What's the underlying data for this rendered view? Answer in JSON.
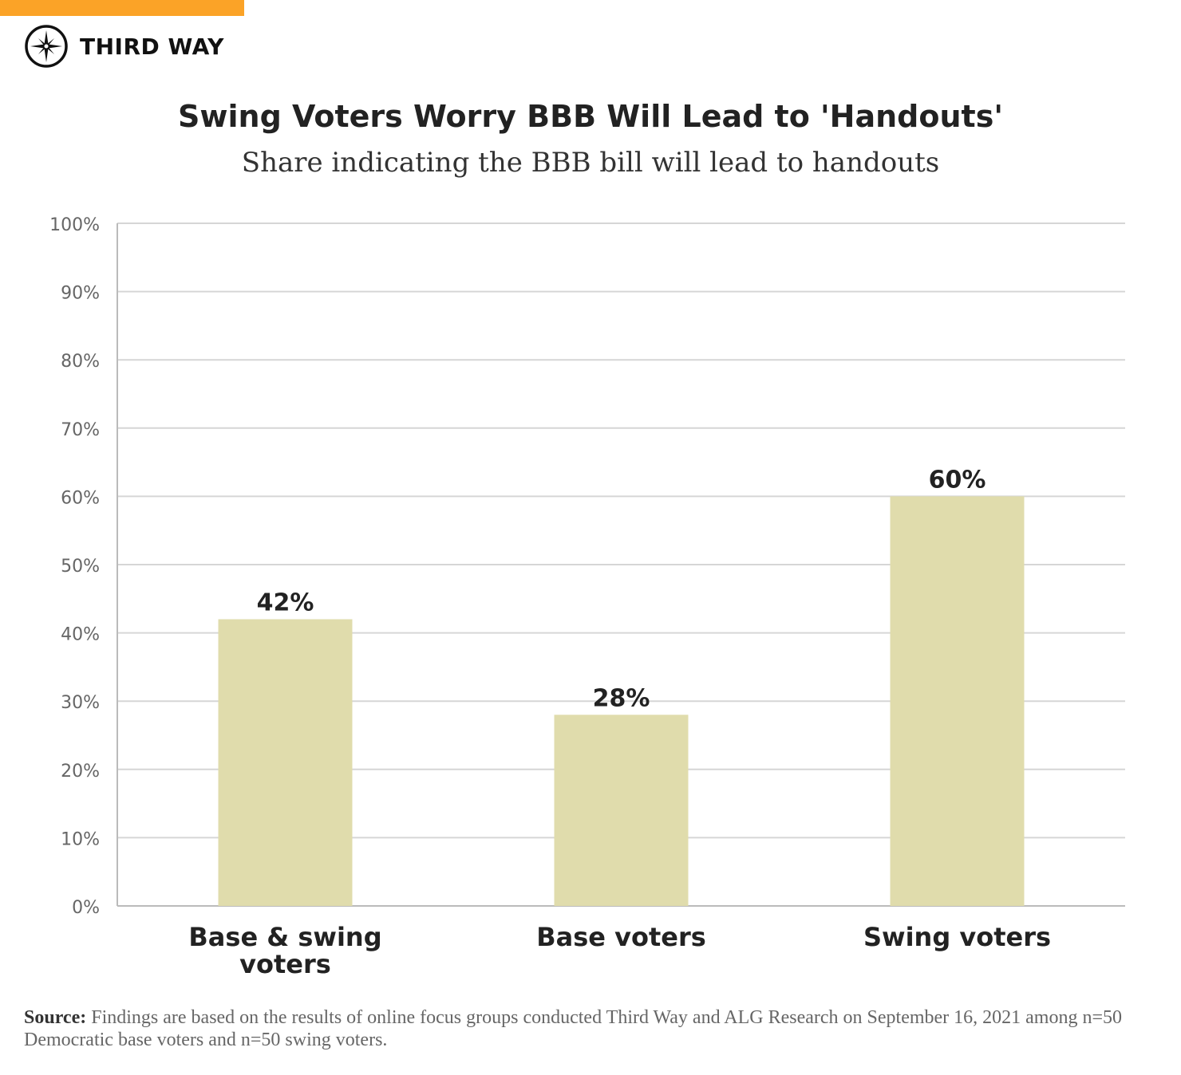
{
  "brand": {
    "name": "THIRD WAY",
    "accent": "#fba327"
  },
  "chart_data": {
    "type": "bar",
    "title": "Swing Voters Worry BBB Will Lead to 'Handouts'",
    "subtitle": "Share indicating the BBB bill will lead to handouts",
    "categories": [
      [
        "Base & swing",
        "voters"
      ],
      [
        "Base voters"
      ],
      [
        "Swing voters"
      ]
    ],
    "values": [
      42,
      28,
      60
    ],
    "data_labels": [
      "42%",
      "28%",
      "60%"
    ],
    "ylim": [
      0,
      100
    ],
    "yticks": [
      0,
      10,
      20,
      30,
      40,
      50,
      60,
      70,
      80,
      90,
      100
    ],
    "ytick_labels": [
      "0%",
      "10%",
      "20%",
      "30%",
      "40%",
      "50%",
      "60%",
      "70%",
      "80%",
      "90%",
      "100%"
    ],
    "grid": true,
    "bar_color": "#e0dcac"
  },
  "source": {
    "label": "Source:",
    "text": " Findings are based on the results of online focus groups conducted Third Way and ALG Research on September 16, 2021 among n=50 Democratic base voters and n=50 swing voters."
  }
}
